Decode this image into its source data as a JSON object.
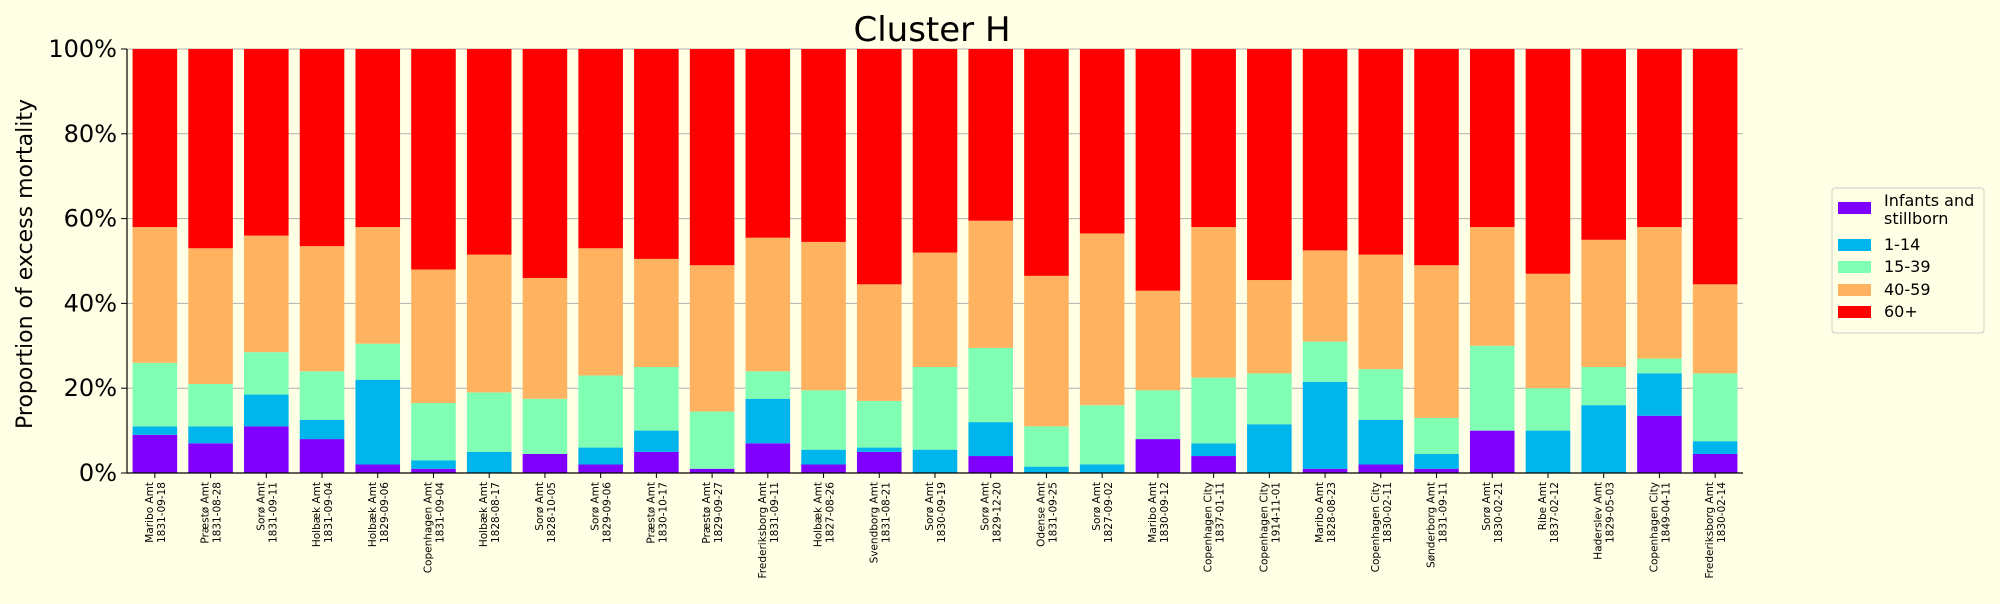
{
  "chart_data": {
    "type": "bar",
    "stacked": true,
    "title": "Cluster H",
    "xlabel": "",
    "ylabel": "Proportion of excess mortality",
    "ylim": [
      0,
      1
    ],
    "yticks": [
      "0%",
      "20%",
      "40%",
      "60%",
      "80%",
      "100%"
    ],
    "grid": "horizontal",
    "legend_position": "right",
    "categories": [
      [
        "Maribo Amt",
        "1831-09-18"
      ],
      [
        "Præstø Amt",
        "1831-08-28"
      ],
      [
        "Sorø Amt",
        "1831-09-11"
      ],
      [
        "Holbæk Amt",
        "1831-09-04"
      ],
      [
        "Holbæk Amt",
        "1829-09-06"
      ],
      [
        "Copenhagen Amt",
        "1831-09-04"
      ],
      [
        "Holbæk Amt",
        "1828-08-17"
      ],
      [
        "Sorø Amt",
        "1828-10-05"
      ],
      [
        "Sorø Amt",
        "1829-09-06"
      ],
      [
        "Præstø Amt",
        "1830-10-17"
      ],
      [
        "Præstø Amt",
        "1829-09-27"
      ],
      [
        "Frederiksborg Amt",
        "1831-09-11"
      ],
      [
        "Holbæk Amt",
        "1827-08-26"
      ],
      [
        "Svendborg Amt",
        "1831-08-21"
      ],
      [
        "Sorø Amt",
        "1830-09-19"
      ],
      [
        "Sorø Amt",
        "1829-12-20"
      ],
      [
        "Odense Amt",
        "1831-09-25"
      ],
      [
        "Sorø Amt",
        "1827-09-02"
      ],
      [
        "Maribo Amt",
        "1830-09-12"
      ],
      [
        "Copenhagen City",
        "1837-01-11"
      ],
      [
        "Copenhagen City",
        "1914-11-01"
      ],
      [
        "Maribo Amt",
        "1828-08-23"
      ],
      [
        "Copenhagen City",
        "1830-02-11"
      ],
      [
        "Sønderborg Amt",
        "1831-09-11"
      ],
      [
        "Sorø Amt",
        "1830-02-21"
      ],
      [
        "Ribe Amt",
        "1837-02-12"
      ],
      [
        "Haderslev Amt",
        "1829-05-03"
      ],
      [
        "Copenhagen City",
        "1849-04-11"
      ],
      [
        "Frederiksborg Amt",
        "1830-02-14"
      ]
    ],
    "series": [
      {
        "name": "Infants and stillborn",
        "color": "#8000FF",
        "values": [
          0.09,
          0.07,
          0.11,
          0.08,
          0.02,
          0.01,
          0.0,
          0.045,
          0.02,
          0.05,
          0.01,
          0.07,
          0.02,
          0.05,
          0.0,
          0.04,
          0.0,
          0.0,
          0.08,
          0.04,
          0.0,
          0.01,
          0.02,
          0.01,
          0.1,
          0.0,
          0.0,
          0.135,
          0.045
        ]
      },
      {
        "name": "1-14",
        "color": "#00B5EB",
        "values": [
          0.02,
          0.04,
          0.075,
          0.045,
          0.2,
          0.02,
          0.05,
          0.0,
          0.04,
          0.05,
          0.0,
          0.105,
          0.035,
          0.01,
          0.055,
          0.08,
          0.015,
          0.02,
          0.0,
          0.03,
          0.115,
          0.205,
          0.105,
          0.035,
          0.0,
          0.1,
          0.16,
          0.1,
          0.03
        ]
      },
      {
        "name": "15-39",
        "color": "#80FFB4",
        "values": [
          0.15,
          0.1,
          0.1,
          0.115,
          0.085,
          0.135,
          0.14,
          0.13,
          0.17,
          0.15,
          0.135,
          0.065,
          0.14,
          0.11,
          0.195,
          0.175,
          0.095,
          0.14,
          0.115,
          0.155,
          0.12,
          0.095,
          0.12,
          0.085,
          0.2,
          0.1,
          0.09,
          0.035,
          0.16
        ]
      },
      {
        "name": "40-59",
        "color": "#FFB360",
        "values": [
          0.32,
          0.32,
          0.275,
          0.295,
          0.275,
          0.315,
          0.325,
          0.285,
          0.3,
          0.255,
          0.345,
          0.315,
          0.35,
          0.275,
          0.27,
          0.3,
          0.355,
          0.405,
          0.235,
          0.355,
          0.22,
          0.215,
          0.27,
          0.36,
          0.28,
          0.27,
          0.3,
          0.31,
          0.21
        ]
      },
      {
        "name": "60+",
        "color": "#FF0000",
        "values": [
          0.42,
          0.47,
          0.44,
          0.465,
          0.42,
          0.52,
          0.485,
          0.54,
          0.47,
          0.495,
          0.51,
          0.445,
          0.455,
          0.555,
          0.48,
          0.405,
          0.535,
          0.435,
          0.57,
          0.42,
          0.545,
          0.475,
          0.485,
          0.51,
          0.42,
          0.53,
          0.45,
          0.42,
          0.555
        ]
      }
    ]
  }
}
